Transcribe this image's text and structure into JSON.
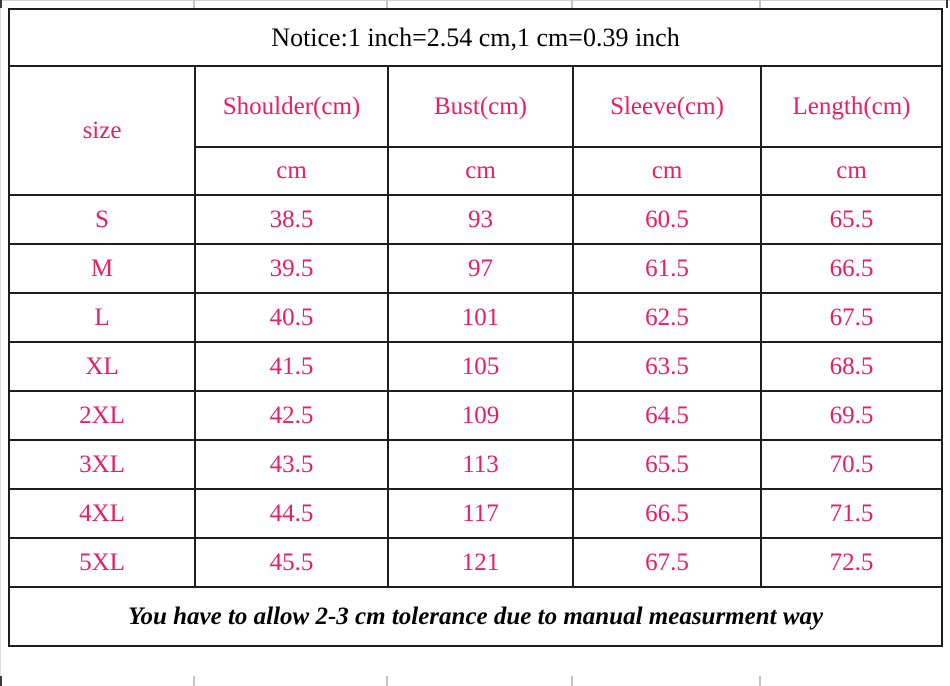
{
  "chart_data": {
    "type": "table",
    "title": "Notice:1 inch=2.54 cm,1 cm=0.39 inch",
    "columns": [
      "size",
      "Shoulder(cm)",
      "Bust(cm)",
      "Sleeve(cm)",
      "Length(cm)"
    ],
    "units_row": [
      "",
      "cm",
      "cm",
      "cm",
      "cm"
    ],
    "rows": [
      [
        "S",
        38.5,
        93,
        60.5,
        65.5
      ],
      [
        "M",
        39.5,
        97,
        61.5,
        66.5
      ],
      [
        "L",
        40.5,
        101,
        62.5,
        67.5
      ],
      [
        "XL",
        41.5,
        105,
        63.5,
        68.5
      ],
      [
        "2XL",
        42.5,
        109,
        64.5,
        69.5
      ],
      [
        "3XL",
        43.5,
        113,
        65.5,
        70.5
      ],
      [
        "4XL",
        44.5,
        117,
        66.5,
        71.5
      ],
      [
        "5XL",
        45.5,
        121,
        67.5,
        72.5
      ]
    ],
    "footnote": "You have to allow 2-3 cm tolerance due to manual measurment way",
    "layout": {
      "grid": true,
      "header_color": "#e91e63",
      "text_color": "#000000"
    }
  }
}
